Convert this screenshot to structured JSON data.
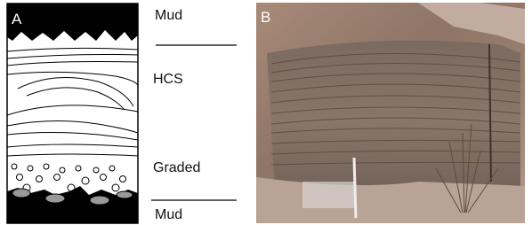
{
  "panel_a": {
    "label": "A",
    "layers": [
      "Mud",
      "HCS",
      "Graded",
      "Mud"
    ]
  },
  "panel_b": {
    "label": "B"
  }
}
